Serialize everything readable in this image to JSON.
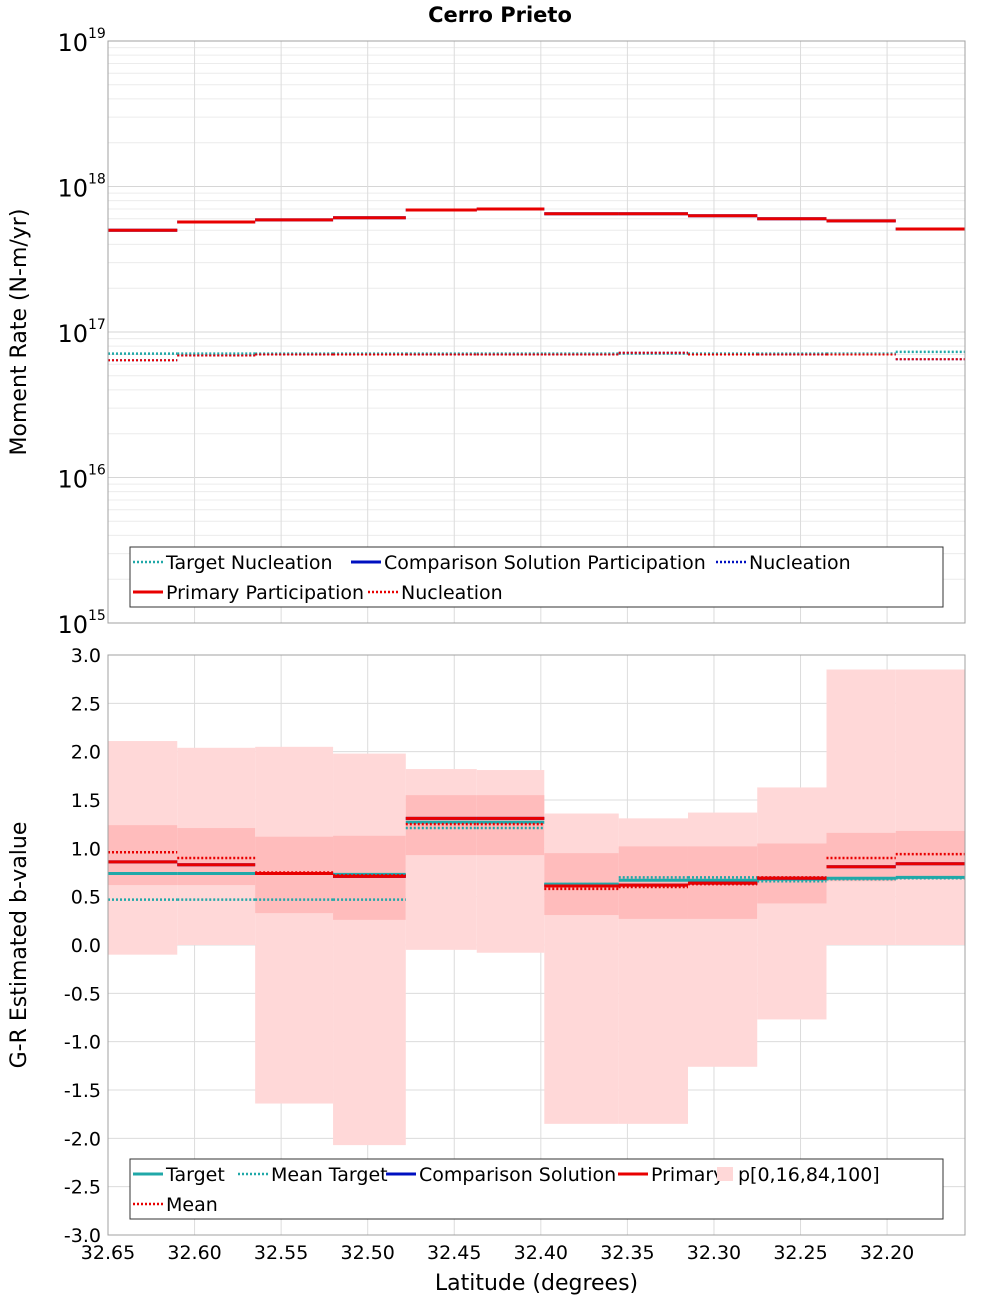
{
  "title": "Cerro Prieto",
  "colors": {
    "target": "#20a8a8",
    "comparison": "#0010c0",
    "primary": "#e80000",
    "band_outer": "#ffd8d8",
    "band_inner": "#ffbcbc"
  },
  "chart_data": [
    {
      "type": "line",
      "step": true,
      "title": "Cerro Prieto",
      "xlabel": "",
      "ylabel": "Moment Rate (N-m/yr)",
      "y_scale": "log",
      "ylim": [
        1000000000000000.0,
        1e+19
      ],
      "xlim": [
        32.65,
        32.155
      ],
      "x_reversed": true,
      "grid": true,
      "y_ticks": [
        {
          "value": 1000000000000000.0,
          "base": "10",
          "exp": "15"
        },
        {
          "value": 1e+16,
          "base": "10",
          "exp": "16"
        },
        {
          "value": 1e+17,
          "base": "10",
          "exp": "17"
        },
        {
          "value": 1e+18,
          "base": "10",
          "exp": "18"
        },
        {
          "value": 1e+19,
          "base": "10",
          "exp": "19"
        }
      ],
      "legend_position": "bottom",
      "legend": [
        {
          "label": "Target Nucleation",
          "color": "#20a8a8",
          "dash": true
        },
        {
          "label": "Comparison Solution Participation",
          "color": "#0010c0",
          "dash": false
        },
        {
          "label": "Nucleation",
          "color": "#0010c0",
          "dash": true
        },
        {
          "label": "Primary Participation",
          "color": "#e80000",
          "dash": false
        },
        {
          "label": "Nucleation",
          "color": "#e80000",
          "dash": true
        }
      ],
      "bin_edges": [
        32.65,
        32.61,
        32.565,
        32.52,
        32.478,
        32.437,
        32.398,
        32.355,
        32.315,
        32.275,
        32.235,
        32.195,
        32.155
      ],
      "series": [
        {
          "name": "Target Nucleation",
          "color": "#20a8a8",
          "dash": true,
          "width": 2.5,
          "values": [
            7.1e+16,
            7.1e+16,
            7.1e+16,
            7.1e+16,
            7.1e+16,
            7.1e+16,
            7.1e+16,
            7.1e+16,
            7.1e+16,
            7.1e+16,
            7.1e+16,
            7.3e+16
          ]
        },
        {
          "name": "Comparison Solution Nucleation",
          "color": "#0010c0",
          "dash": true,
          "width": 2,
          "values": [
            6.4e+16,
            6.9e+16,
            7e+16,
            7e+16,
            7e+16,
            7e+16,
            7e+16,
            7.2e+16,
            7e+16,
            7e+16,
            7e+16,
            6.5e+16
          ]
        },
        {
          "name": "Primary Nucleation",
          "color": "#e80000",
          "dash": true,
          "width": 2,
          "values": [
            6.4e+16,
            6.9e+16,
            7e+16,
            7e+16,
            7e+16,
            7e+16,
            7e+16,
            7.2e+16,
            7e+16,
            7e+16,
            7e+16,
            6.5e+16
          ]
        },
        {
          "name": "Comparison Solution Participation",
          "color": "#0010c0",
          "dash": false,
          "width": 3,
          "values": [
            5e+17,
            5.7e+17,
            5.9e+17,
            6.1e+17,
            6.9e+17,
            7e+17,
            6.5e+17,
            6.5e+17,
            6.3e+17,
            6e+17,
            5.8e+17,
            5.1e+17
          ]
        },
        {
          "name": "Primary Participation",
          "color": "#e80000",
          "dash": false,
          "width": 3,
          "values": [
            5e+17,
            5.7e+17,
            5.9e+17,
            6.1e+17,
            6.9e+17,
            7e+17,
            6.5e+17,
            6.5e+17,
            6.3e+17,
            6e+17,
            5.8e+17,
            5.1e+17
          ]
        }
      ]
    },
    {
      "type": "line",
      "step": true,
      "xlabel": "Latitude (degrees)",
      "ylabel": "G-R Estimated b-value",
      "y_scale": "linear",
      "ylim": [
        -3.0,
        3.0
      ],
      "xlim": [
        32.65,
        32.155
      ],
      "x_reversed": true,
      "grid": true,
      "y_ticks": [
        {
          "value": 3.0,
          "label": "3.0"
        },
        {
          "value": 2.5,
          "label": "2.5"
        },
        {
          "value": 2.0,
          "label": "2.0"
        },
        {
          "value": 1.5,
          "label": "1.5"
        },
        {
          "value": 1.0,
          "label": "1.0"
        },
        {
          "value": 0.5,
          "label": "0.5"
        },
        {
          "value": 0.0,
          "label": "0.0"
        },
        {
          "value": -0.5,
          "label": "-0.5"
        },
        {
          "value": -1.0,
          "label": "-1.0"
        },
        {
          "value": -1.5,
          "label": "-1.5"
        },
        {
          "value": -2.0,
          "label": "-2.0"
        },
        {
          "value": -2.5,
          "label": "-2.5"
        },
        {
          "value": -3.0,
          "label": "-3.0"
        }
      ],
      "x_ticks": [
        {
          "value": 32.65,
          "label": "32.65"
        },
        {
          "value": 32.6,
          "label": "32.60"
        },
        {
          "value": 32.55,
          "label": "32.55"
        },
        {
          "value": 32.5,
          "label": "32.50"
        },
        {
          "value": 32.45,
          "label": "32.45"
        },
        {
          "value": 32.4,
          "label": "32.40"
        },
        {
          "value": 32.35,
          "label": "32.35"
        },
        {
          "value": 32.3,
          "label": "32.30"
        },
        {
          "value": 32.25,
          "label": "32.25"
        },
        {
          "value": 32.2,
          "label": "32.20"
        }
      ],
      "legend_position": "bottom",
      "legend": [
        {
          "label": "Target",
          "color": "#20a8a8",
          "dash": false
        },
        {
          "label": "Mean Target",
          "color": "#20a8a8",
          "dash": true
        },
        {
          "label": "Comparison Solution",
          "color": "#0010c0",
          "dash": false
        },
        {
          "label": "Primary",
          "color": "#e80000",
          "dash": false
        },
        {
          "label": "p[0,16,84,100]",
          "color": "#ffd8d8",
          "box": true
        },
        {
          "label": "Mean",
          "color": "#e80000",
          "dash": true
        }
      ],
      "bin_edges": [
        32.65,
        32.61,
        32.565,
        32.52,
        32.478,
        32.437,
        32.398,
        32.355,
        32.315,
        32.275,
        32.235,
        32.195,
        32.155
      ],
      "bands": {
        "p0": [
          -0.1,
          0.0,
          -1.64,
          -2.07,
          -0.05,
          -0.08,
          -1.85,
          -1.85,
          -1.26,
          -0.77,
          0.0,
          0.0
        ],
        "p16": [
          0.62,
          0.62,
          0.33,
          0.26,
          0.93,
          0.93,
          0.31,
          0.27,
          0.27,
          0.43,
          0.66,
          0.68
        ],
        "p84": [
          1.24,
          1.21,
          1.12,
          1.13,
          1.55,
          1.55,
          0.95,
          1.02,
          1.02,
          1.05,
          1.16,
          1.18
        ],
        "p100": [
          2.11,
          2.04,
          2.05,
          1.98,
          1.82,
          1.81,
          1.36,
          1.31,
          1.37,
          1.63,
          2.85,
          2.85
        ]
      },
      "series": [
        {
          "name": "Mean Target",
          "color": "#20a8a8",
          "dash": true,
          "width": 2.5,
          "values": [
            0.47,
            0.47,
            0.47,
            0.47,
            1.21,
            1.21,
            0.63,
            0.7,
            0.7,
            0.66,
            0.68,
            0.69
          ]
        },
        {
          "name": "Target",
          "color": "#20a8a8",
          "dash": false,
          "width": 3,
          "values": [
            0.74,
            0.74,
            0.74,
            0.73,
            1.27,
            1.27,
            0.63,
            0.67,
            0.67,
            0.68,
            0.69,
            0.7
          ]
        },
        {
          "name": "Comparison Solution",
          "color": "#0010c0",
          "dash": false,
          "width": 3,
          "values": [
            0.86,
            0.83,
            0.74,
            0.71,
            1.31,
            1.31,
            0.61,
            0.62,
            0.64,
            0.69,
            0.81,
            0.84
          ]
        },
        {
          "name": "Mean",
          "color": "#e80000",
          "dash": true,
          "width": 2.5,
          "values": [
            0.96,
            0.9,
            0.75,
            0.72,
            1.25,
            1.25,
            0.58,
            0.6,
            0.63,
            0.7,
            0.9,
            0.94
          ]
        },
        {
          "name": "Primary",
          "color": "#e80000",
          "dash": false,
          "width": 3,
          "values": [
            0.86,
            0.83,
            0.74,
            0.71,
            1.31,
            1.31,
            0.61,
            0.62,
            0.64,
            0.69,
            0.81,
            0.84
          ]
        }
      ]
    }
  ]
}
